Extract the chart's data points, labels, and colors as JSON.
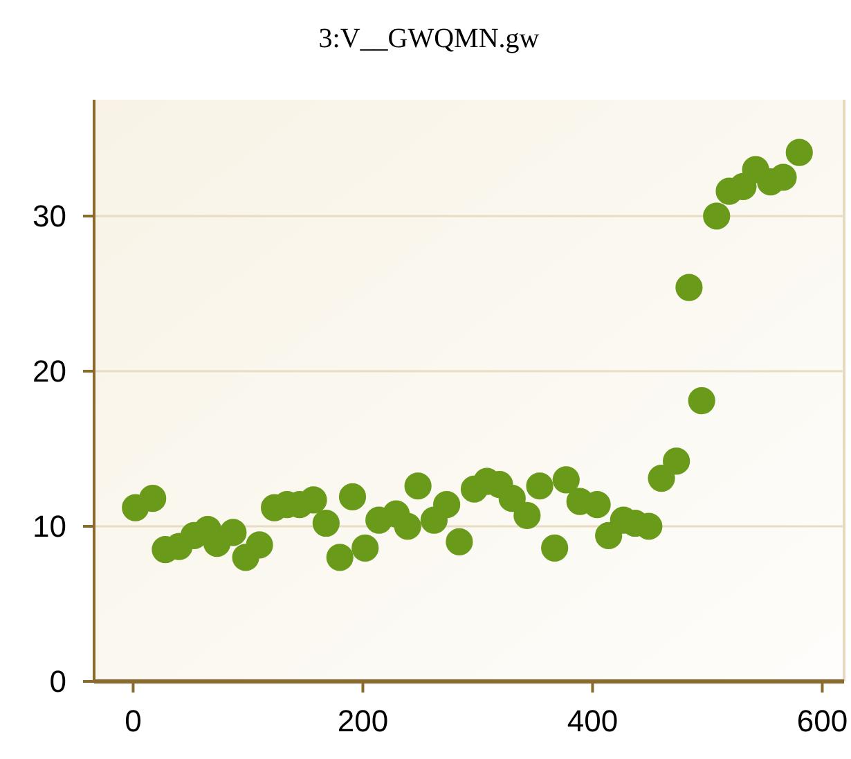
{
  "chart_data": {
    "type": "scatter",
    "title": "3:V__GWQMN.gw",
    "x": [
      2,
      17,
      28,
      40,
      53,
      65,
      73,
      87,
      98,
      110,
      123,
      134,
      145,
      157,
      168,
      180,
      191,
      202,
      214,
      229,
      239,
      248,
      262,
      273,
      284,
      297,
      308,
      319,
      330,
      343,
      354,
      367,
      377,
      389,
      404,
      414,
      427,
      437,
      449,
      460,
      473,
      484,
      495,
      508,
      519,
      531,
      542,
      555,
      566,
      580
    ],
    "series": [
      {
        "color": "#6a9a1a",
        "values": [
          11.2,
          11.8,
          8.5,
          8.7,
          9.4,
          9.8,
          8.9,
          9.6,
          8,
          8.8,
          11.2,
          11.4,
          11.4,
          11.7,
          10.2,
          8,
          11.9,
          8.6,
          10.4,
          10.8,
          10,
          12.6,
          10.4,
          11.4,
          9,
          12.4,
          12.9,
          12.7,
          11.8,
          10.7,
          12.6,
          8.6,
          13,
          11.6,
          11.4,
          9.4,
          10.4,
          10.2,
          10,
          13.1,
          14.2,
          25.4,
          18.1,
          30,
          31.6,
          31.9,
          33,
          32.2,
          32.5,
          34.1
        ]
      }
    ],
    "xlim": [
      -34,
      619
    ],
    "ylim": [
      0,
      37.5
    ],
    "xticks": [
      0,
      200,
      400,
      600
    ],
    "yticks": [
      0,
      10,
      20,
      30
    ],
    "grid": "y",
    "marker": "circle"
  }
}
